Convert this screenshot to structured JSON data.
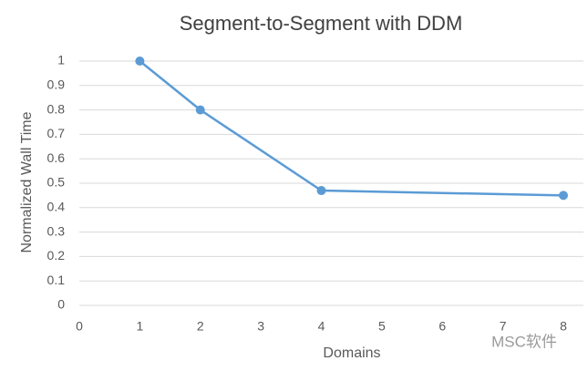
{
  "chart_data": {
    "type": "line",
    "title": "Segment-to-Segment with DDM",
    "x_label": "Domains",
    "y_label": "Normalized Wall Time",
    "series": [
      {
        "name": "Segment-to-Segment with DDM",
        "color": "#5b9bd5",
        "x": [
          1,
          2,
          4,
          8
        ],
        "values": [
          1,
          0.8,
          0.47,
          0.45
        ]
      }
    ],
    "xlim": [
      0,
      8
    ],
    "xticks": [
      0,
      1,
      2,
      3,
      4,
      5,
      6,
      7,
      8
    ],
    "ylim": [
      0,
      1
    ],
    "yticks": [
      0,
      0.1,
      0.2,
      0.3,
      0.4,
      0.5,
      0.6,
      0.7,
      0.8,
      0.9,
      1
    ],
    "grid": true,
    "watermark": "MSC软件"
  }
}
